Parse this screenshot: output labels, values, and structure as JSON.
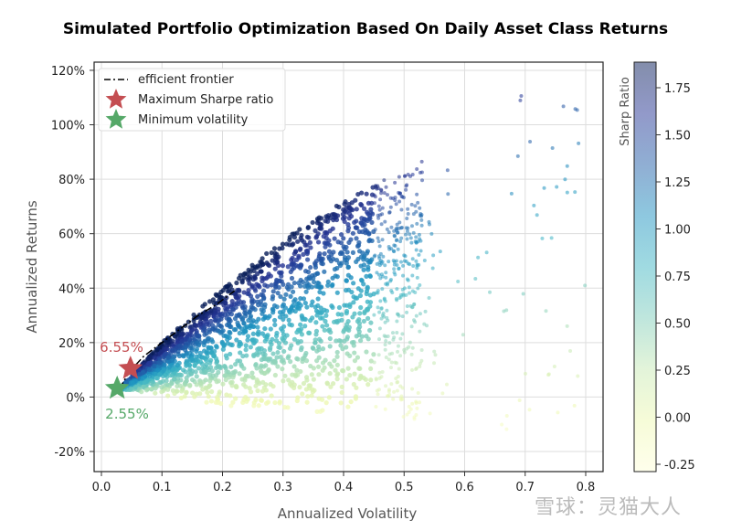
{
  "chart_data": {
    "type": "scatter",
    "title": "Simulated Portfolio Optimization Based On Daily Asset Class Returns",
    "xlabel": "Annualized Volatility",
    "ylabel": "Annualized Returns",
    "xlim": [
      -0.012,
      0.83
    ],
    "ylim": [
      -27,
      124
    ],
    "xticks": [
      "0.0",
      "0.1",
      "0.2",
      "0.3",
      "0.4",
      "0.5",
      "0.6",
      "0.7",
      "0.8"
    ],
    "xtick_values": [
      0,
      0.1,
      0.2,
      0.3,
      0.4,
      0.5,
      0.6,
      0.7,
      0.8
    ],
    "yticks": [
      "-20%",
      "0%",
      "20%",
      "40%",
      "60%",
      "80%",
      "100%",
      "120%"
    ],
    "ytick_values": [
      -20,
      0,
      20,
      40,
      60,
      80,
      100,
      120
    ],
    "grid": true,
    "legend": {
      "placement": "top-left",
      "entries": [
        {
          "label": "efficient frontier",
          "marker": "dash-dot line",
          "color": "#000000"
        },
        {
          "label": "Maximum Sharpe ratio",
          "marker": "star",
          "color": "#c44e52"
        },
        {
          "label": "Minimum volatility",
          "marker": "star",
          "color": "#55a868"
        }
      ]
    },
    "scatter_description_params": {
      "n_points_rendered": 2600,
      "min_vol_point": [
        0.026,
        3.2
      ],
      "upper_edge": [
        [
          0.03,
          3
        ],
        [
          0.1,
          20
        ],
        [
          0.2,
          40
        ],
        [
          0.3,
          58
        ],
        [
          0.4,
          72
        ],
        [
          0.47,
          80
        ],
        [
          0.55,
          90
        ],
        [
          0.6,
          100
        ],
        [
          0.72,
          116
        ]
      ],
      "lower_edge": [
        [
          0.03,
          3
        ],
        [
          0.2,
          -3
        ],
        [
          0.4,
          -7
        ],
        [
          0.5,
          -9
        ],
        [
          0.8,
          -20
        ]
      ]
    },
    "frontier": {
      "x": [
        0.03,
        0.045,
        0.07,
        0.1,
        0.13,
        0.16,
        0.19,
        0.22
      ],
      "y": [
        3,
        9,
        15,
        20,
        25,
        30,
        34,
        39
      ]
    },
    "max_sharpe": {
      "x": 0.048,
      "y": 10.5,
      "label": "6.55%",
      "color": "#c44e52"
    },
    "min_vol": {
      "x": 0.026,
      "y": 3.2,
      "label": "2.55%",
      "color": "#55a868"
    },
    "colorbar": {
      "label": "Sharp Ratio",
      "range": [
        -0.32,
        1.88
      ],
      "ticks": [
        "-0.25",
        "0.00",
        "0.25",
        "0.50",
        "0.75",
        "1.00",
        "1.25",
        "1.50",
        "1.75"
      ],
      "tick_values": [
        -0.25,
        0,
        0.25,
        0.5,
        0.75,
        1,
        1.25,
        1.5,
        1.75
      ],
      "colormap": [
        "#ffffd9",
        "#edf8b1",
        "#c7e9b4",
        "#7fcdbb",
        "#41b6c4",
        "#1d91c0",
        "#225ea8",
        "#253494",
        "#081d58"
      ]
    }
  },
  "watermark": "雪球：灵猫大人"
}
